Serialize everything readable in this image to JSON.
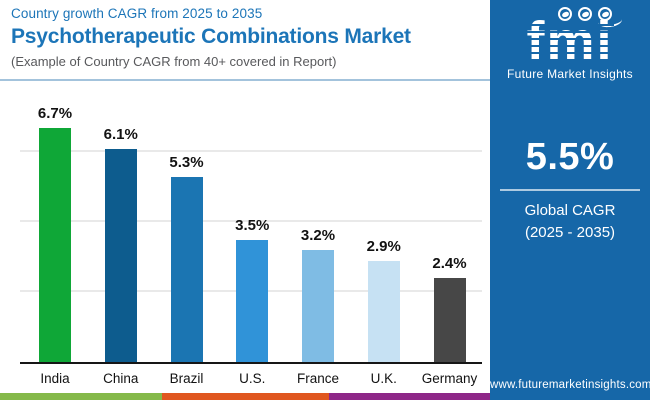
{
  "header": {
    "kicker": "Country growth CAGR from 2025 to 2035",
    "title": "Psychotherapeutic Combinations Market",
    "subtitle": "(Example of Country CAGR from 40+ covered in Report)"
  },
  "chart_data": {
    "type": "bar",
    "title": "Country growth CAGR from 2025 to 2035 — Psychotherapeutic Combinations Market",
    "categories": [
      "India",
      "China",
      "Brazil",
      "U.S.",
      "France",
      "U.K.",
      "Germany"
    ],
    "values": [
      6.7,
      6.1,
      5.3,
      3.5,
      3.2,
      2.9,
      2.4
    ],
    "labels": [
      "6.7%",
      "6.1%",
      "5.3%",
      "3.5%",
      "3.2%",
      "2.9%",
      "2.4%"
    ],
    "bar_colors": [
      "#0FA737",
      "#0D5C8E",
      "#1B75B2",
      "#3093D8",
      "#7FBCE4",
      "#C6E1F3",
      "#474747"
    ],
    "xlabel": "",
    "ylabel": "",
    "ylim": [
      0,
      7.5
    ],
    "gridlines": [
      2,
      4,
      6
    ],
    "grid": true,
    "legend": "none",
    "value_suffix": "%"
  },
  "panel": {
    "bg_color": "#1667A8",
    "logo_word": "fmi",
    "brand_name": "Future Market Insights",
    "cagr_value": "5.5%",
    "cagr_label_line1": "Global CAGR",
    "cagr_label_line2": "(2025 - 2035)",
    "website": "www.futuremarketinsights.com"
  },
  "footer_strip": {
    "colors": [
      "#85B94A",
      "#E0571F",
      "#8E2788"
    ],
    "widths": [
      162,
      167,
      161
    ]
  }
}
